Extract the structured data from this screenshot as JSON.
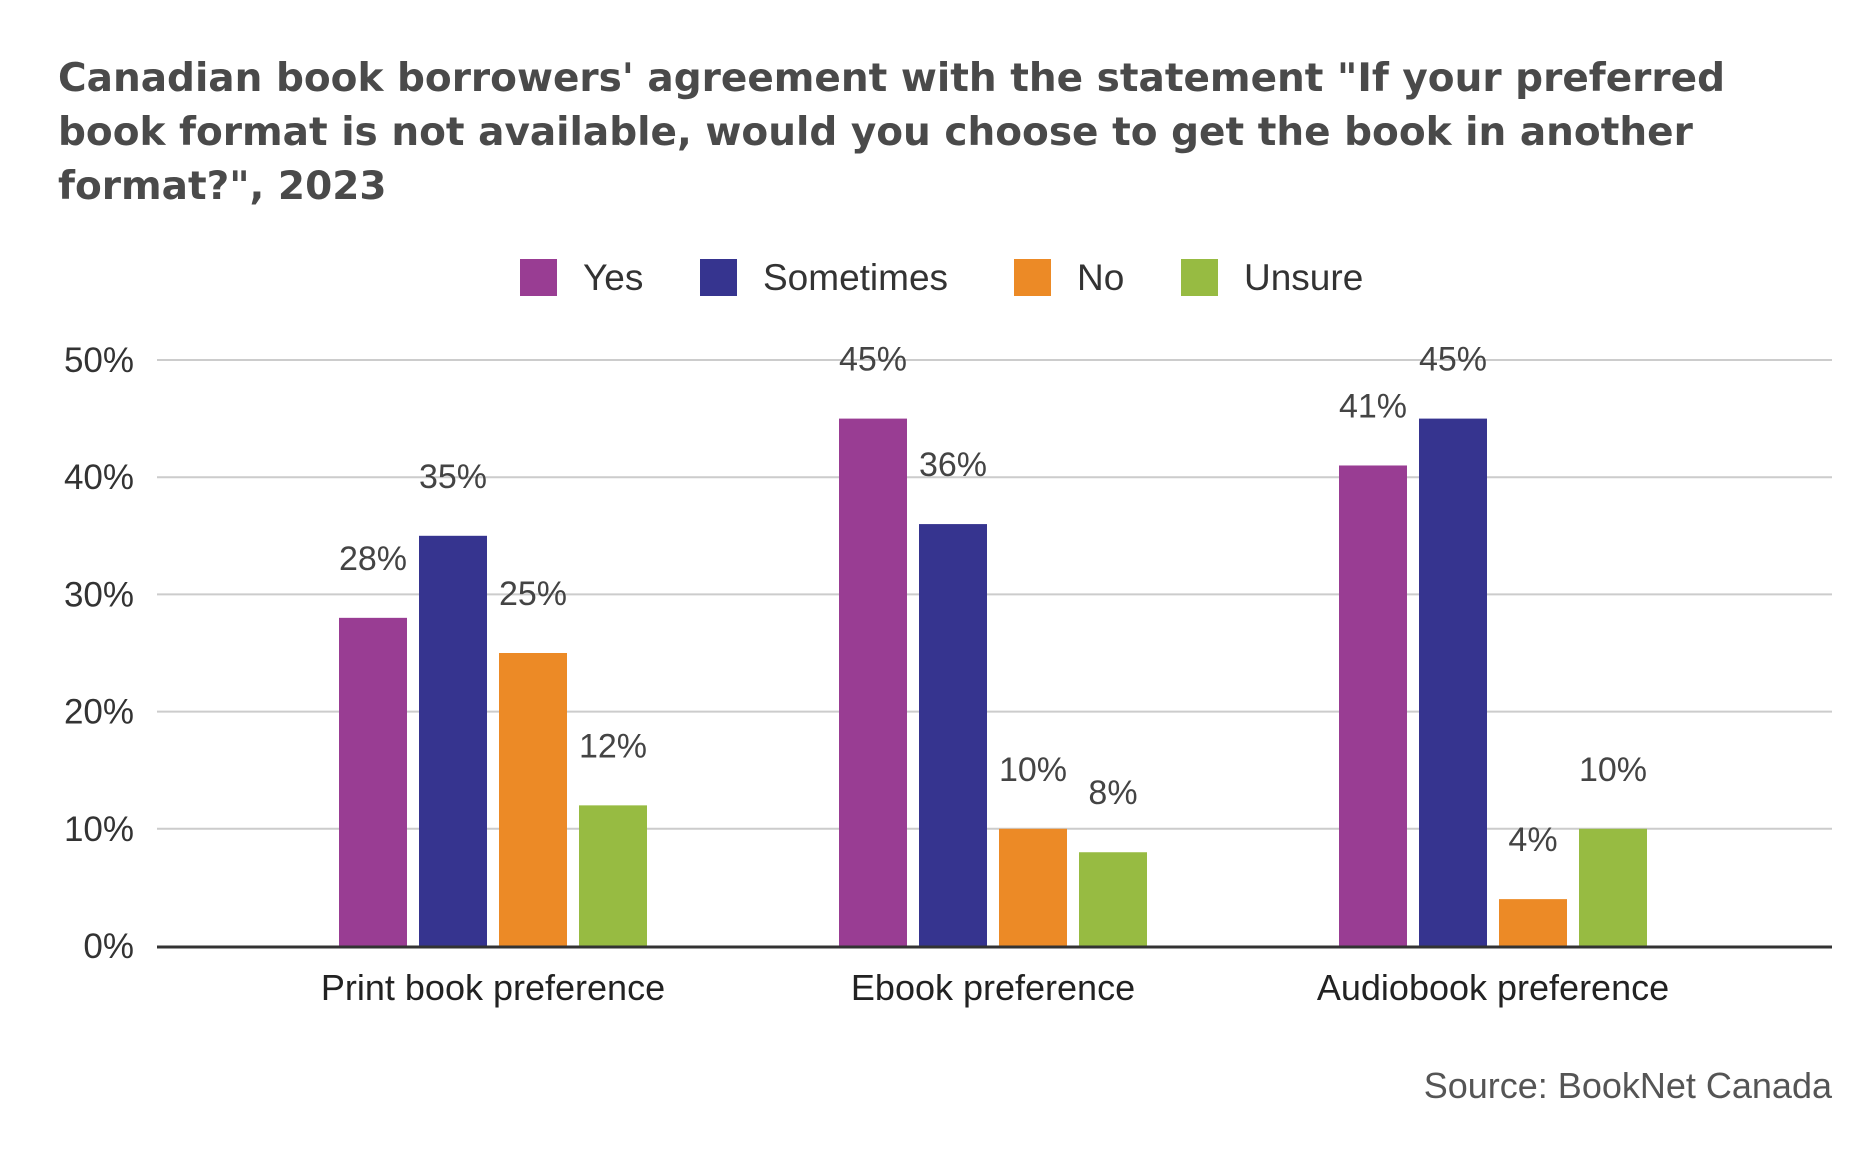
{
  "chart_data": {
    "type": "bar",
    "title": "Canadian book borrowers' agreement with the statement \"If your preferred book format is not available, would you choose to get the book in another format?\", 2023",
    "categories": [
      "Print book preference",
      "Ebook preference",
      "Audiobook preference"
    ],
    "series": [
      {
        "name": "Yes",
        "color": "#993d93",
        "values": [
          28,
          45,
          41
        ],
        "labels": [
          "28%",
          "45%",
          "41%"
        ]
      },
      {
        "name": "Sometimes",
        "color": "#36348f",
        "values": [
          35,
          36,
          45
        ],
        "labels": [
          "35%",
          "36%",
          "45%"
        ]
      },
      {
        "name": "No",
        "color": "#ec8a26",
        "values": [
          25,
          10,
          4
        ],
        "labels": [
          "25%",
          "10%",
          "4%"
        ]
      },
      {
        "name": "Unsure",
        "color": "#97bb42",
        "values": [
          12,
          8,
          10
        ],
        "labels": [
          "12%",
          "8%",
          "10%"
        ]
      }
    ],
    "ylim": [
      0,
      50
    ],
    "yticks": [
      0,
      10,
      20,
      30,
      40,
      50
    ],
    "ytick_labels": [
      "0%",
      "10%",
      "20%",
      "30%",
      "40%",
      "50%"
    ],
    "xlabel": "",
    "ylabel": "",
    "grid": true,
    "legend_position": "top-center",
    "source": "Source: BookNet Canada"
  }
}
